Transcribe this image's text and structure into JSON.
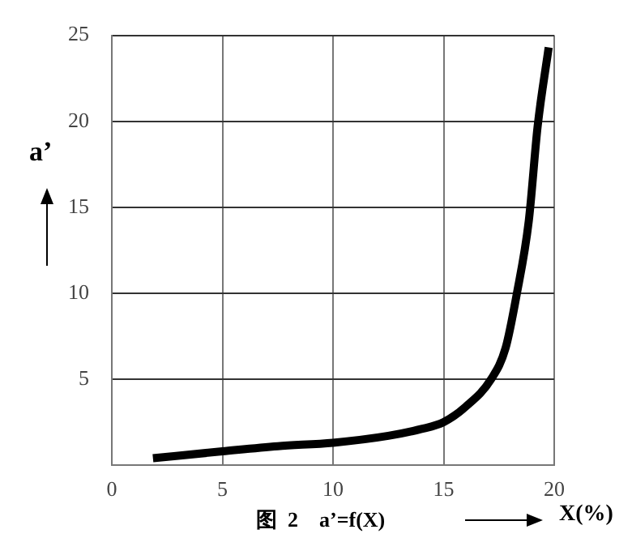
{
  "chart_data": {
    "type": "line",
    "title": "图  2    a’=f(X)",
    "xlabel": "X(%)",
    "ylabel": "a’",
    "x": [
      1.86,
      5,
      7.5,
      10,
      12.5,
      14,
      15,
      16,
      17.15,
      17.8,
      18.3,
      18.85,
      19.25,
      19.75
    ],
    "series": [
      {
        "color": "#000000",
        "values": [
          0.4,
          0.8,
          1.1,
          1.3,
          1.7,
          2.1,
          2.5,
          3.4,
          5.0,
          6.8,
          9.9,
          14.2,
          19.7,
          24.3
        ]
      }
    ],
    "xlim": [
      0,
      20
    ],
    "xticks": [
      0,
      5,
      10,
      15,
      20
    ],
    "ylim": [
      0,
      25
    ],
    "yticks": [
      {
        "value": 0,
        "label": null
      },
      5,
      10,
      15,
      20,
      25
    ],
    "grid": true,
    "legend": false,
    "marker": "none",
    "line_style": "solid"
  }
}
